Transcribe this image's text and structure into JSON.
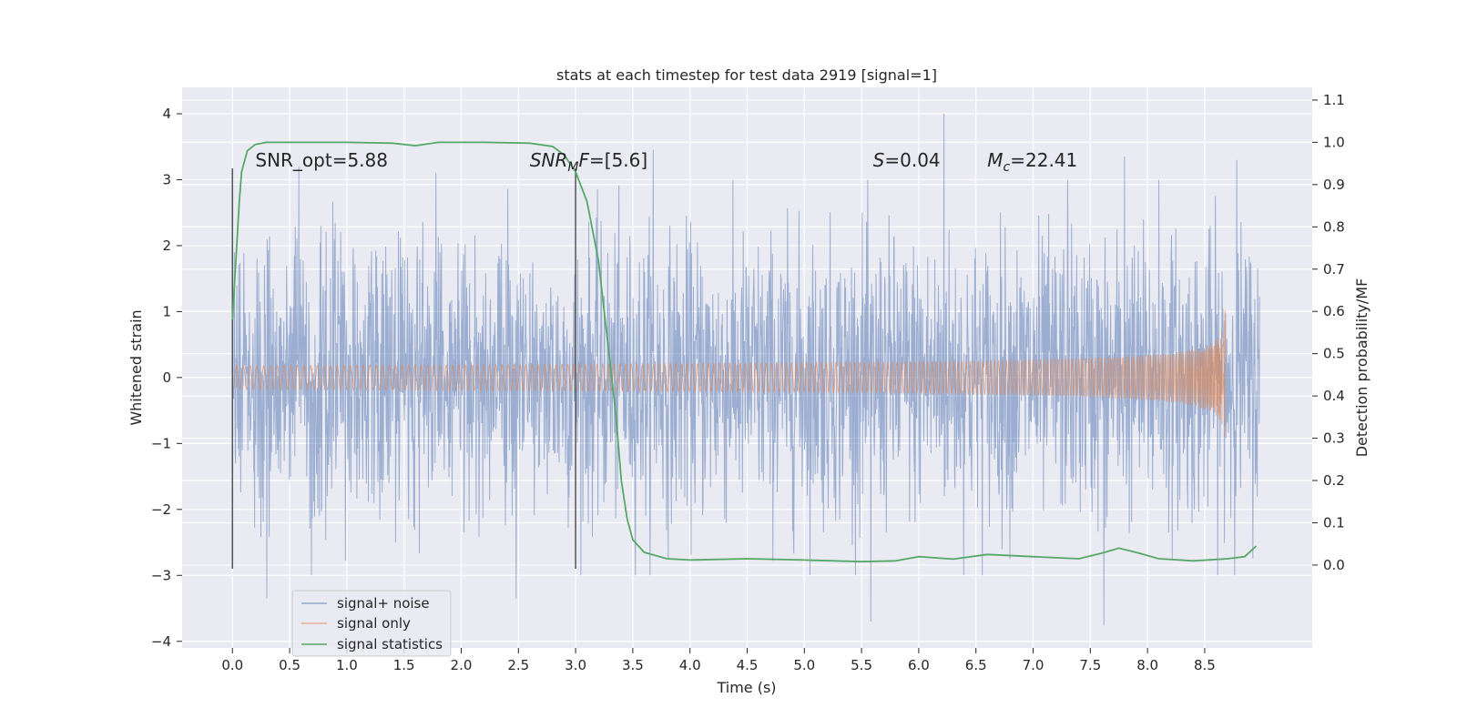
{
  "chart_data": {
    "type": "line",
    "title": "stats at each timestep for test data 2919 [signal=1]",
    "xlabel": "Time (s)",
    "ylabel": "Whitened strain",
    "y2label": "Detection probability/MF",
    "xlim": [
      -0.44,
      9.44
    ],
    "ylim": [
      -4.1,
      4.4
    ],
    "y2lim": [
      -0.196,
      1.13
    ],
    "x_ticks": [
      0.0,
      0.5,
      1.0,
      1.5,
      2.0,
      2.5,
      3.0,
      3.5,
      4.0,
      4.5,
      5.0,
      5.5,
      6.0,
      6.5,
      7.0,
      7.5,
      8.0,
      8.5
    ],
    "x_tick_labels": [
      "0.0",
      "0.5",
      "1.0",
      "1.5",
      "2.0",
      "2.5",
      "3.0",
      "3.5",
      "4.0",
      "4.5",
      "5.0",
      "5.5",
      "6.0",
      "6.5",
      "7.0",
      "7.5",
      "8.0",
      "8.5"
    ],
    "y_ticks": [
      4,
      3,
      2,
      1,
      0,
      -1,
      -2,
      -3,
      -4
    ],
    "y_tick_labels": [
      "4",
      "3",
      "2",
      "1",
      "0",
      "−1",
      "−2",
      "−3",
      "−4"
    ],
    "y2_ticks": [
      1.1,
      1.0,
      0.9,
      0.8,
      0.7,
      0.6,
      0.5,
      0.4,
      0.3,
      0.2,
      0.1,
      0.0
    ],
    "y2_tick_labels": [
      "1.1",
      "1.0",
      "0.9",
      "0.8",
      "0.7",
      "0.6",
      "0.5",
      "0.4",
      "0.3",
      "0.2",
      "0.1",
      "0.0"
    ],
    "grid": true,
    "legend_position": "bottom-left",
    "series": [
      {
        "name": "signal+ noise",
        "color": "#4c72b0",
        "axis": "left",
        "style": "dense noise",
        "x_range": [
          0.0,
          8.98
        ],
        "typical_amplitude": 2.2,
        "peaks": [
          {
            "x": 0.58,
            "y": 3.2
          },
          {
            "x": 1.78,
            "y": 3.1
          },
          {
            "x": 2.48,
            "y": -3.35
          },
          {
            "x": 3.68,
            "y": 3.45
          },
          {
            "x": 5.58,
            "y": -3.7
          },
          {
            "x": 6.22,
            "y": 4.0
          },
          {
            "x": 7.3,
            "y": 3.0
          },
          {
            "x": 7.62,
            "y": -3.75
          },
          {
            "x": 7.8,
            "y": 3.35
          },
          {
            "x": 8.1,
            "y": 3.0
          },
          {
            "x": 8.78,
            "y": 3.3
          },
          {
            "x": 0.3,
            "y": -3.35
          }
        ]
      },
      {
        "name": "signal only",
        "color": "#dd8452",
        "axis": "left",
        "style": "chirp",
        "x_range": [
          0.0,
          8.68
        ],
        "end_amplitude": 1.3
      },
      {
        "name": "signal statistics",
        "color": "#55a868",
        "axis": "right",
        "points": [
          [
            0.0,
            0.58
          ],
          [
            0.03,
            0.72
          ],
          [
            0.06,
            0.86
          ],
          [
            0.08,
            0.93
          ],
          [
            0.1,
            0.95
          ],
          [
            0.13,
            0.98
          ],
          [
            0.2,
            0.995
          ],
          [
            0.3,
            1.0
          ],
          [
            0.5,
            1.0
          ],
          [
            1.0,
            1.0
          ],
          [
            1.4,
            0.998
          ],
          [
            1.6,
            0.992
          ],
          [
            1.8,
            1.0
          ],
          [
            2.2,
            1.0
          ],
          [
            2.6,
            0.998
          ],
          [
            2.8,
            0.99
          ],
          [
            2.9,
            0.97
          ],
          [
            3.0,
            0.93
          ],
          [
            3.1,
            0.86
          ],
          [
            3.2,
            0.72
          ],
          [
            3.3,
            0.48
          ],
          [
            3.35,
            0.36
          ],
          [
            3.4,
            0.2
          ],
          [
            3.45,
            0.11
          ],
          [
            3.5,
            0.06
          ],
          [
            3.6,
            0.03
          ],
          [
            3.8,
            0.015
          ],
          [
            4.0,
            0.012
          ],
          [
            4.5,
            0.015
          ],
          [
            5.0,
            0.012
          ],
          [
            5.5,
            0.008
          ],
          [
            5.8,
            0.01
          ],
          [
            6.0,
            0.02
          ],
          [
            6.3,
            0.014
          ],
          [
            6.6,
            0.025
          ],
          [
            7.0,
            0.02
          ],
          [
            7.4,
            0.015
          ],
          [
            7.6,
            0.028
          ],
          [
            7.75,
            0.04
          ],
          [
            7.9,
            0.03
          ],
          [
            8.1,
            0.015
          ],
          [
            8.4,
            0.01
          ],
          [
            8.7,
            0.015
          ],
          [
            8.85,
            0.02
          ],
          [
            8.95,
            0.045
          ]
        ]
      }
    ],
    "vertical_lines": [
      {
        "x": 0.0,
        "y_range": [
          -2.9,
          3.17
        ],
        "color": "#555555"
      },
      {
        "x": 3.0,
        "y_range": [
          -2.9,
          3.17
        ],
        "color": "#555555"
      }
    ],
    "annotations": [
      {
        "id": "snr-opt",
        "text": "SNR_opt=5.88",
        "x": 0.2,
        "y": 3.2
      },
      {
        "id": "snr-mf",
        "text": "SNR_MF=[5.6]",
        "prefix": "SNR",
        "sub": "M",
        "suffix": "F=[5.6]",
        "x": 2.6,
        "y": 3.2
      },
      {
        "id": "s-value",
        "text": "S=0.04",
        "prefix": "S",
        "suffix": "=0.04",
        "x": 5.6,
        "y": 3.2
      },
      {
        "id": "mc-value",
        "text": "Mc=22.41",
        "prefix": "M",
        "sub": "c",
        "suffix": "=22.41",
        "x": 6.6,
        "y": 3.2
      }
    ]
  },
  "legend": {
    "items": [
      {
        "label": "signal+ noise",
        "color": "#4c72b0"
      },
      {
        "label": "signal only",
        "color": "#dd8452"
      },
      {
        "label": "signal statistics",
        "color": "#55a868"
      }
    ]
  },
  "colors": {
    "plot_background": "#eaeaf2",
    "grid": "#ffffff",
    "text": "#262626"
  }
}
